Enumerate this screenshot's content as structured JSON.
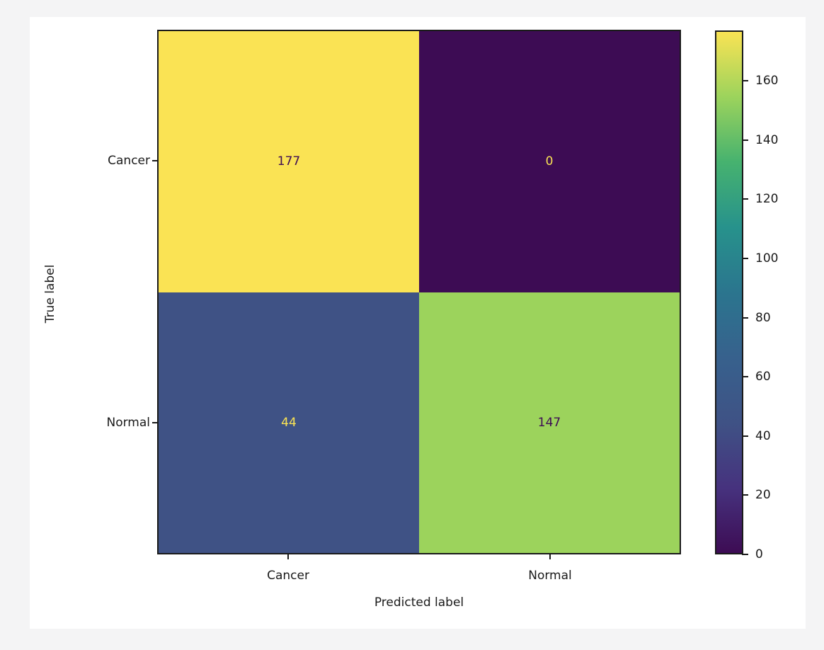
{
  "chart_data": {
    "type": "heatmap",
    "subtype": "confusion-matrix",
    "title": "",
    "xlabel": "Predicted label",
    "ylabel": "True label",
    "x_categories": [
      "Cancer",
      "Normal"
    ],
    "y_categories": [
      "Cancer",
      "Normal"
    ],
    "matrix": [
      [
        177,
        0
      ],
      [
        44,
        147
      ]
    ],
    "vmin": 0,
    "vmax": 177,
    "colormap": "viridis",
    "colorbar_ticks": [
      0,
      20,
      40,
      60,
      80,
      100,
      120,
      140,
      160
    ],
    "colorbar_gradient": [
      "#3d0c54",
      "#46327e",
      "#3f5285",
      "#37618d",
      "#2b758e",
      "#27928c",
      "#46b26f",
      "#9cd35c",
      "#fae354"
    ],
    "cell_colors": [
      [
        "#fae354",
        "#3d0c54"
      ],
      [
        "#3f5285",
        "#9cd35c"
      ]
    ],
    "cell_text_colors": [
      [
        "#3d0c54",
        "#fae354"
      ],
      [
        "#fae354",
        "#3d0c54"
      ]
    ]
  },
  "colors": {
    "page_background": "#f4f4f5",
    "figure_background": "#ffffff",
    "axis": "#1a1a1a",
    "text": "#1a1a1a"
  }
}
